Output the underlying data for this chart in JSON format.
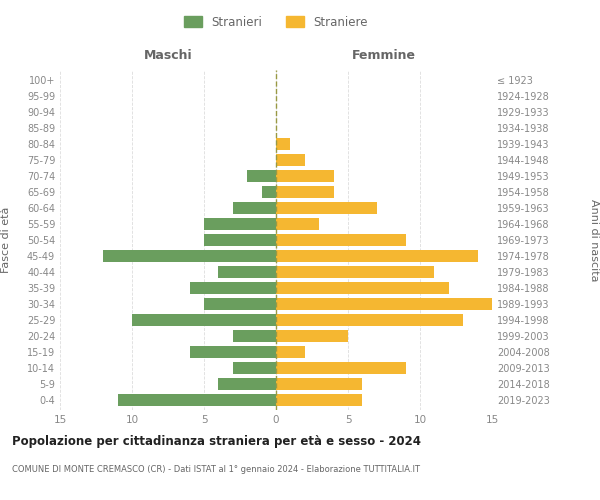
{
  "age_groups": [
    "0-4",
    "5-9",
    "10-14",
    "15-19",
    "20-24",
    "25-29",
    "30-34",
    "35-39",
    "40-44",
    "45-49",
    "50-54",
    "55-59",
    "60-64",
    "65-69",
    "70-74",
    "75-79",
    "80-84",
    "85-89",
    "90-94",
    "95-99",
    "100+"
  ],
  "birth_years": [
    "2019-2023",
    "2014-2018",
    "2009-2013",
    "2004-2008",
    "1999-2003",
    "1994-1998",
    "1989-1993",
    "1984-1988",
    "1979-1983",
    "1974-1978",
    "1969-1973",
    "1964-1968",
    "1959-1963",
    "1954-1958",
    "1949-1953",
    "1944-1948",
    "1939-1943",
    "1934-1938",
    "1929-1933",
    "1924-1928",
    "≤ 1923"
  ],
  "males": [
    11,
    4,
    3,
    6,
    3,
    10,
    5,
    6,
    4,
    12,
    5,
    5,
    3,
    1,
    2,
    0,
    0,
    0,
    0,
    0,
    0
  ],
  "females": [
    6,
    6,
    9,
    2,
    5,
    13,
    15,
    12,
    11,
    14,
    9,
    3,
    7,
    4,
    4,
    2,
    1,
    0,
    0,
    0,
    0
  ],
  "male_color": "#6a9e5e",
  "female_color": "#f5b731",
  "title": "Popolazione per cittadinanza straniera per età e sesso - 2024",
  "subtitle": "COMUNE DI MONTE CREMASCO (CR) - Dati ISTAT al 1° gennaio 2024 - Elaborazione TUTTITALIA.IT",
  "xlabel_left": "Maschi",
  "xlabel_right": "Femmine",
  "ylabel_left": "Fasce di età",
  "ylabel_right": "Anni di nascita",
  "legend_male": "Stranieri",
  "legend_female": "Straniere",
  "xlim": 15,
  "background_color": "#ffffff",
  "grid_color": "#dddddd",
  "dashed_line_color": "#999944",
  "tick_color": "#888888",
  "label_color": "#666666"
}
